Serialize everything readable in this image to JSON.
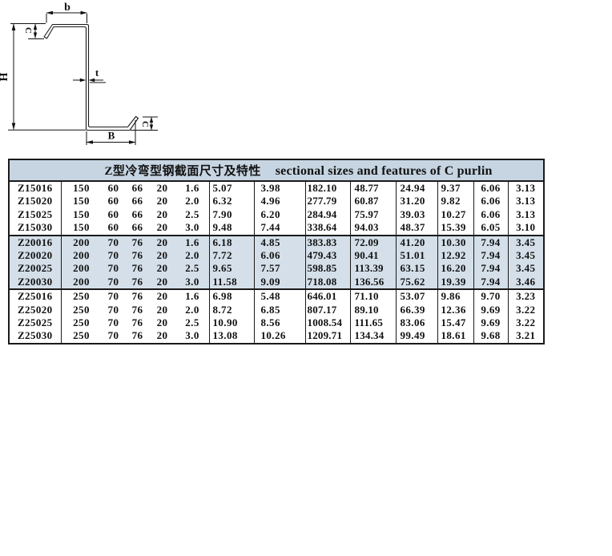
{
  "diagram": {
    "name": "z-purlin-section-diagram",
    "labels": {
      "top_flange_width": "b",
      "top_lip": "C",
      "height": "H",
      "thickness": "t",
      "bottom_flange_width": "B",
      "bottom_lip": "C"
    }
  },
  "table": {
    "title_cn": "Z型冷弯型钢截面尺寸及特性",
    "title_en": "sectional sizes and features of  C purlin",
    "colors": {
      "header_bg": "#c7d5e2",
      "highlight_bg": "#d4dfe9",
      "border": "#1a1a1a"
    },
    "row_groups": [
      {
        "highlight": false,
        "rows": [
          {
            "name": "Z15016",
            "dims": [
              "150",
              "60",
              "66",
              "20",
              "1.6"
            ],
            "values": [
              "5.07",
              "3.98",
              "182.10",
              "48.77",
              "24.94",
              "9.37",
              "6.06",
              "3.13"
            ]
          },
          {
            "name": "Z15020",
            "dims": [
              "150",
              "60",
              "66",
              "20",
              "2.0"
            ],
            "values": [
              "6.32",
              "4.96",
              "277.79",
              "60.87",
              "31.20",
              "9.82",
              "6.06",
              "3.13"
            ]
          },
          {
            "name": "Z15025",
            "dims": [
              "150",
              "60",
              "66",
              "20",
              "2.5"
            ],
            "values": [
              "7.90",
              "6.20",
              "284.94",
              "75.97",
              "39.03",
              "10.27",
              "6.06",
              "3.13"
            ]
          },
          {
            "name": "Z15030",
            "dims": [
              "150",
              "60",
              "66",
              "20",
              "3.0"
            ],
            "values": [
              "9.48",
              "7.44",
              "338.64",
              "94.03",
              "48.37",
              "15.39",
              "6.05",
              "3.10"
            ]
          }
        ]
      },
      {
        "highlight": true,
        "rows": [
          {
            "name": "Z20016",
            "dims": [
              "200",
              "70",
              "76",
              "20",
              "1.6"
            ],
            "values": [
              "6.18",
              "4.85",
              "383.83",
              "72.09",
              "41.20",
              "10.30",
              "7.94",
              "3.45"
            ]
          },
          {
            "name": "Z20020",
            "dims": [
              "200",
              "70",
              "76",
              "20",
              "2.0"
            ],
            "values": [
              "7.72",
              "6.06",
              "479.43",
              "90.41",
              "51.01",
              "12.92",
              "7.94",
              "3.45"
            ]
          },
          {
            "name": "Z20025",
            "dims": [
              "200",
              "70",
              "76",
              "20",
              "2.5"
            ],
            "values": [
              "9.65",
              "7.57",
              "598.85",
              "113.39",
              "63.15",
              "16.20",
              "7.94",
              "3.45"
            ]
          },
          {
            "name": "Z20030",
            "dims": [
              "200",
              "70",
              "76",
              "20",
              "3.0"
            ],
            "values": [
              "11.58",
              "9.09",
              "718.08",
              "136.56",
              "75.62",
              "19.39",
              "7.94",
              "3.46"
            ]
          }
        ]
      },
      {
        "highlight": false,
        "rows": [
          {
            "name": "Z25016",
            "dims": [
              "250",
              "70",
              "76",
              "20",
              "1.6"
            ],
            "values": [
              "6.98",
              "5.48",
              "646.01",
              "71.10",
              "53.07",
              "9.86",
              "9.70",
              "3.23"
            ]
          },
          {
            "name": "Z25020",
            "dims": [
              "250",
              "70",
              "76",
              "20",
              "2.0"
            ],
            "values": [
              "8.72",
              "6.85",
              "807.17",
              "89.10",
              "66.39",
              "12.36",
              "9.69",
              "3.22"
            ]
          },
          {
            "name": "Z25025",
            "dims": [
              "250",
              "70",
              "76",
              "20",
              "2.5"
            ],
            "values": [
              "10.90",
              "8.56",
              "1008.54",
              "111.65",
              "83.06",
              "15.47",
              "9.69",
              "3.22"
            ]
          },
          {
            "name": "Z25030",
            "dims": [
              "250",
              "70",
              "76",
              "20",
              "3.0"
            ],
            "values": [
              "13.08",
              "10.26",
              "1209.71",
              "134.34",
              "99.49",
              "18.61",
              "9.68",
              "3.21"
            ]
          }
        ]
      }
    ]
  }
}
